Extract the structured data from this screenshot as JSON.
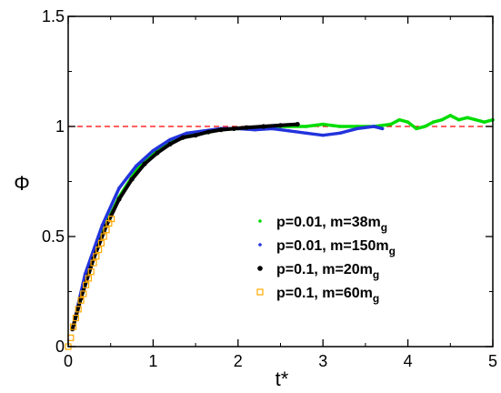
{
  "chart_data": {
    "type": "scatter",
    "xlabel": "t*",
    "ylabel": "Φ",
    "xlim": [
      0,
      5
    ],
    "ylim": [
      0,
      1.5
    ],
    "x_ticks": [
      "0",
      "1",
      "2",
      "3",
      "4",
      "5"
    ],
    "y_ticks": [
      "0",
      "0.5",
      "1",
      "1.5"
    ],
    "grid": false,
    "legend_position": "lower-right",
    "reference_line": {
      "y": 1,
      "color": "#ff0000",
      "style": "dashed"
    },
    "series": [
      {
        "label_main": "p=0.01, m=38m",
        "label_sub": "g",
        "color": "#00dd00",
        "marker": "small-circle",
        "x": [
          0.05,
          0.2,
          0.4,
          0.6,
          0.8,
          1.0,
          1.2,
          1.4,
          1.6,
          1.8,
          2.0,
          2.2,
          2.4,
          2.6,
          2.8,
          3.0,
          3.2,
          3.4,
          3.6,
          3.8,
          3.9,
          4.0,
          4.1,
          4.2,
          4.3,
          4.4,
          4.5,
          4.6,
          4.7,
          4.8,
          4.9,
          5.0
        ],
        "y": [
          0.08,
          0.3,
          0.52,
          0.68,
          0.8,
          0.88,
          0.93,
          0.96,
          0.97,
          0.985,
          0.99,
          0.995,
          1.0,
          1.0,
          1.0,
          1.01,
          1.0,
          1.0,
          1.0,
          1.01,
          1.03,
          1.02,
          0.99,
          1.0,
          1.02,
          1.03,
          1.05,
          1.03,
          1.04,
          1.03,
          1.02,
          1.03
        ]
      },
      {
        "label_main": "p=0.01, m=150m",
        "label_sub": "g",
        "color": "#2233dd",
        "marker": "small-circle",
        "x": [
          0.05,
          0.2,
          0.4,
          0.6,
          0.8,
          1.0,
          1.2,
          1.4,
          1.6,
          1.8,
          2.0,
          2.2,
          2.4,
          2.6,
          2.8,
          3.0,
          3.2,
          3.4,
          3.6,
          3.7
        ],
        "y": [
          0.08,
          0.33,
          0.55,
          0.72,
          0.82,
          0.89,
          0.94,
          0.97,
          0.98,
          0.99,
          0.99,
          0.985,
          0.99,
          0.98,
          0.97,
          0.96,
          0.97,
          0.99,
          1.0,
          0.99
        ]
      },
      {
        "label_main": "p=0.1, m=20m",
        "label_sub": "g",
        "color": "#000000",
        "marker": "filled-circle",
        "x": [
          0.05,
          0.15,
          0.3,
          0.45,
          0.6,
          0.75,
          0.9,
          1.05,
          1.2,
          1.35,
          1.5,
          1.65,
          1.8,
          1.95,
          2.1,
          2.3,
          2.5,
          2.7
        ],
        "y": [
          0.08,
          0.22,
          0.4,
          0.55,
          0.67,
          0.76,
          0.83,
          0.88,
          0.92,
          0.95,
          0.96,
          0.975,
          0.985,
          0.99,
          0.995,
          1.0,
          1.005,
          1.01
        ]
      },
      {
        "label_main": "p=0.1, m=60m",
        "label_sub": "g",
        "color": "#ffaa00",
        "marker": "open-square",
        "x": [
          0.0,
          0.03,
          0.06,
          0.09,
          0.12,
          0.15,
          0.18,
          0.21,
          0.24,
          0.27,
          0.3,
          0.33,
          0.36,
          0.39,
          0.42,
          0.45,
          0.48,
          0.51
        ],
        "y": [
          0.0,
          0.04,
          0.09,
          0.13,
          0.17,
          0.21,
          0.24,
          0.28,
          0.31,
          0.34,
          0.38,
          0.41,
          0.44,
          0.47,
          0.5,
          0.53,
          0.56,
          0.58
        ]
      }
    ]
  }
}
